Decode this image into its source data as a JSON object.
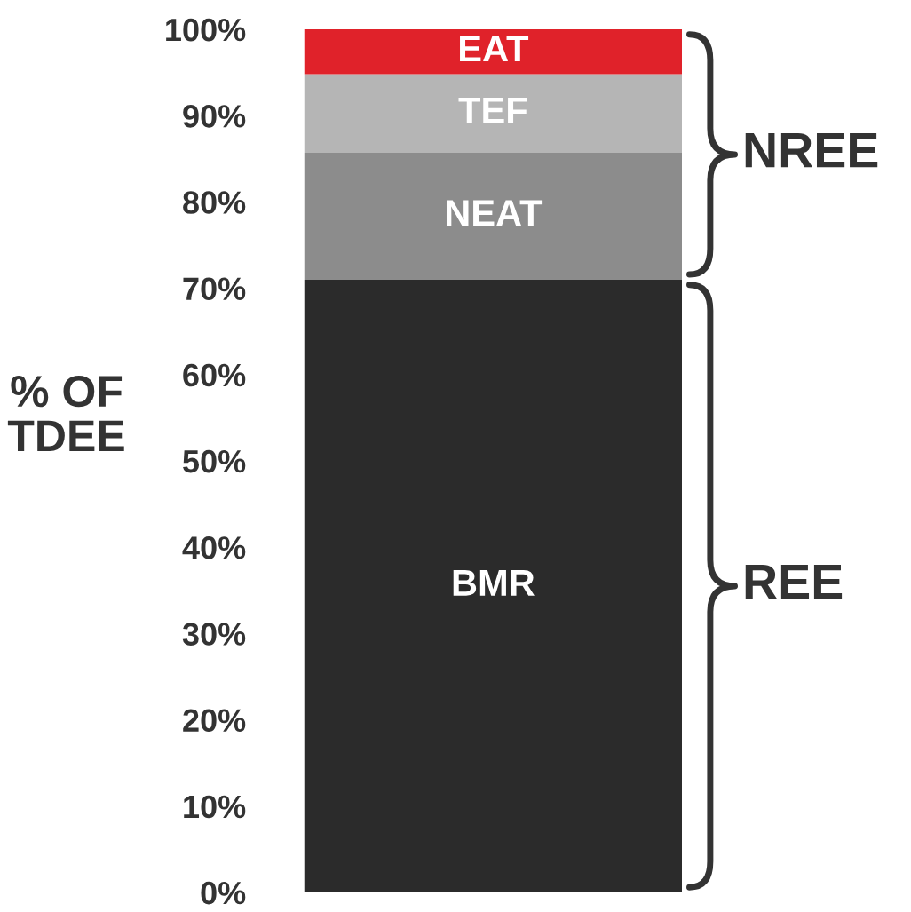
{
  "chart_data": {
    "type": "bar",
    "stacked": true,
    "categories": [
      null
    ],
    "series": [
      {
        "name": "BMR",
        "color": "#2b2b2b",
        "values": [
          71
        ]
      },
      {
        "name": "NEAT",
        "color": "#8c8c8c",
        "values": [
          14.7
        ]
      },
      {
        "name": "TEF",
        "color": "#b5b5b5",
        "values": [
          9.1
        ]
      },
      {
        "name": "EAT",
        "color": "#e0222a",
        "values": [
          5.2
        ]
      }
    ],
    "ylabel": "% OF\nTDEE",
    "ylim": [
      0,
      100
    ],
    "yticks": [
      {
        "value": 0,
        "label": "0%"
      },
      {
        "value": 10,
        "label": "10%"
      },
      {
        "value": 20,
        "label": "20%"
      },
      {
        "value": 30,
        "label": "30%"
      },
      {
        "value": 40,
        "label": "40%"
      },
      {
        "value": 50,
        "label": "50%"
      },
      {
        "value": 60,
        "label": "60%"
      },
      {
        "value": 70,
        "label": "70%"
      },
      {
        "value": 80,
        "label": "80%"
      },
      {
        "value": 90,
        "label": "90%"
      },
      {
        "value": 100,
        "label": "100%"
      }
    ],
    "annotations": [
      "NREE",
      "REE"
    ],
    "legend": false,
    "grid": false
  }
}
